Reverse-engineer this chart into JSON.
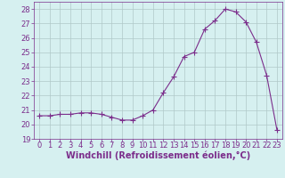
{
  "x": [
    0,
    1,
    2,
    3,
    4,
    5,
    6,
    7,
    8,
    9,
    10,
    11,
    12,
    13,
    14,
    15,
    16,
    17,
    18,
    19,
    20,
    21,
    22,
    23
  ],
  "y": [
    20.6,
    20.6,
    20.7,
    20.7,
    20.8,
    20.8,
    20.7,
    20.5,
    20.3,
    20.3,
    20.6,
    21.0,
    22.2,
    23.3,
    24.7,
    25.0,
    26.6,
    27.2,
    28.0,
    27.8,
    27.1,
    25.7,
    23.4,
    19.6
  ],
  "line_color": "#7b2d8b",
  "marker": "+",
  "marker_size": 4,
  "xlabel": "Windchill (Refroidissement éolien,°C)",
  "xlim": [
    -0.5,
    23.5
  ],
  "ylim": [
    19,
    28.5
  ],
  "yticks": [
    19,
    20,
    21,
    22,
    23,
    24,
    25,
    26,
    27,
    28
  ],
  "xticks": [
    0,
    1,
    2,
    3,
    4,
    5,
    6,
    7,
    8,
    9,
    10,
    11,
    12,
    13,
    14,
    15,
    16,
    17,
    18,
    19,
    20,
    21,
    22,
    23
  ],
  "bg_color": "#d6f0f0",
  "grid_color": "#b0c8c8",
  "line_width": 0.8,
  "axis_color": "#7b2d8b",
  "tick_color": "#7b2d8b",
  "xlabel_color": "#7b2d8b",
  "xlabel_fontsize": 7,
  "tick_fontsize": 6
}
